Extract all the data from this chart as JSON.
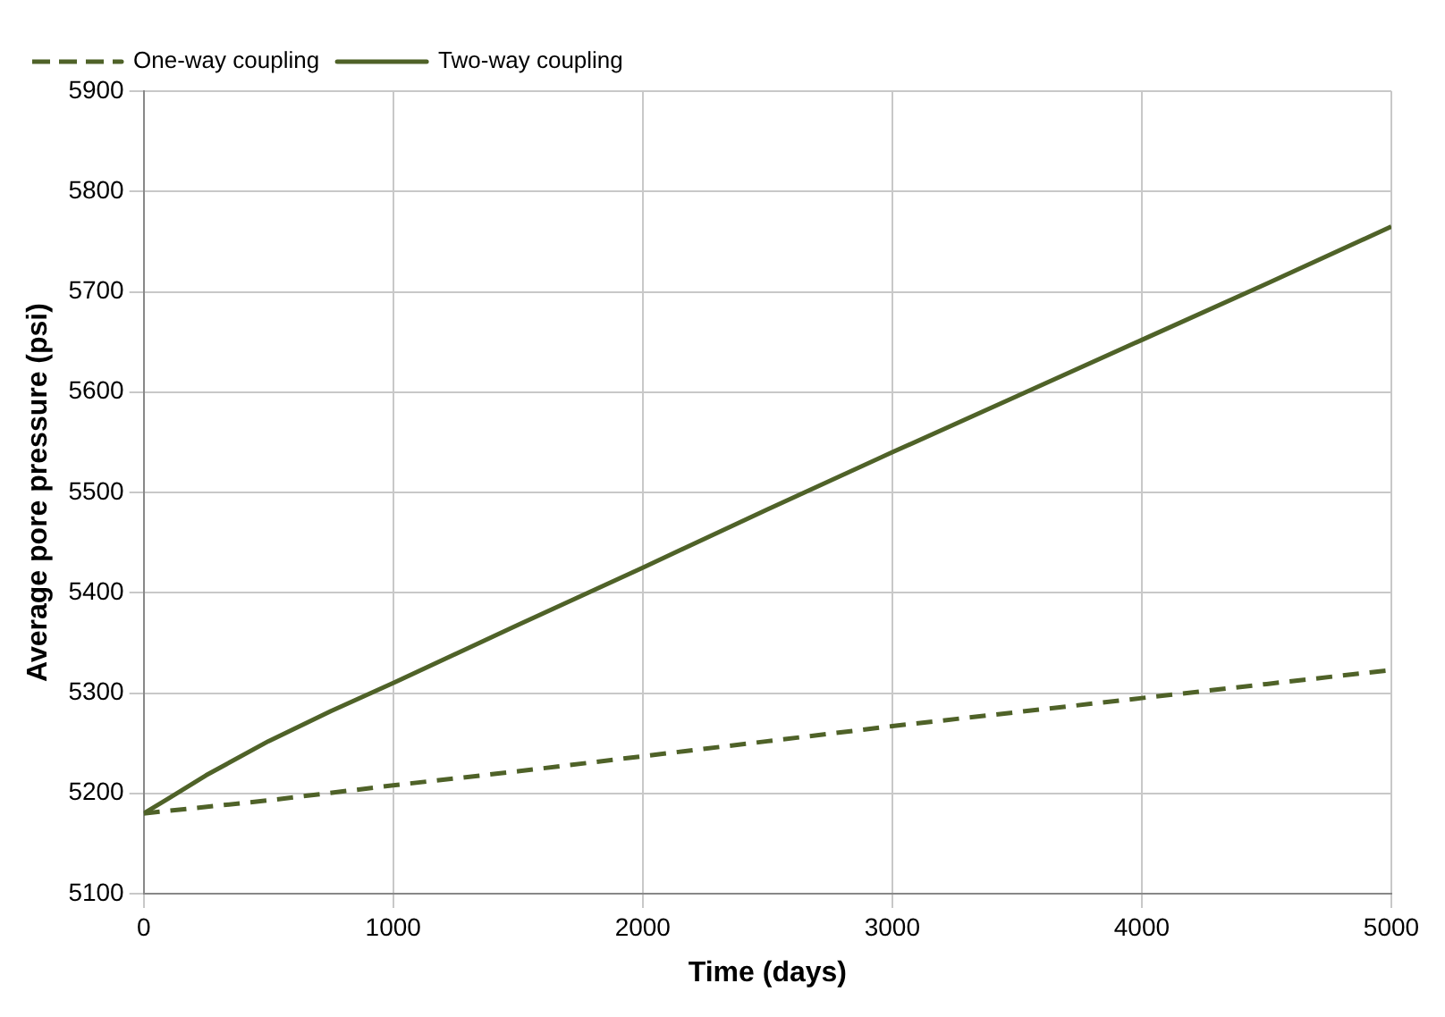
{
  "chart_data": {
    "type": "line",
    "xlabel": "Time (days)",
    "ylabel": "Average pore pressure (psi)",
    "xlim": [
      0,
      5000
    ],
    "xticks": [
      0,
      1000,
      2000,
      3000,
      4000,
      5000
    ],
    "ylim": [
      5100,
      5900
    ],
    "yticks": [
      5100,
      5200,
      5300,
      5400,
      5500,
      5600,
      5700,
      5800,
      5900
    ],
    "grid": true,
    "legend": "top left",
    "marker": "none",
    "series": [
      {
        "name": "One-way coupling",
        "color": "#4f6228",
        "line_style": "dashed",
        "x": [
          0,
          500,
          1000,
          1500,
          2000,
          2500,
          3000,
          3500,
          4000,
          4500,
          5000
        ],
        "values": [
          5180,
          5193,
          5208,
          5222,
          5237,
          5252,
          5267,
          5281,
          5295,
          5309,
          5323
        ]
      },
      {
        "name": "Two-way coupling",
        "color": "#4f6228",
        "line_style": "solid",
        "x": [
          0,
          100,
          250,
          500,
          750,
          1000,
          1500,
          2000,
          2500,
          3000,
          3500,
          4000,
          4500,
          5000
        ],
        "values": [
          5180,
          5195,
          5218,
          5252,
          5282,
          5310,
          5368,
          5425,
          5483,
          5540,
          5596,
          5652,
          5708,
          5765
        ]
      }
    ]
  }
}
